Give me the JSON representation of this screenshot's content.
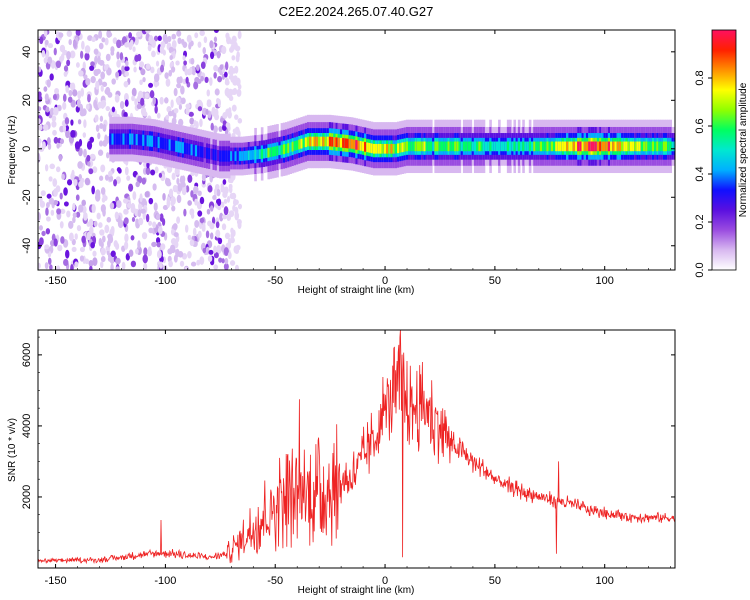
{
  "figure_title": "C2E2.2024.265.07.40.G27",
  "chart_data": [
    {
      "type": "heatmap",
      "xlabel": "Height of straight line (km)",
      "ylabel": "Frequency (Hz)",
      "xlim": [
        -158,
        132
      ],
      "ylim": [
        -50,
        49
      ],
      "xticks": [
        -150,
        -100,
        -50,
        0,
        50,
        100
      ],
      "yticks": [
        -40,
        -20,
        0,
        20,
        40
      ],
      "colorbar": {
        "label": "Normalized spectral amplitude",
        "range": [
          0,
          1
        ],
        "ticks": [
          0.0,
          0.2,
          0.4,
          0.6,
          0.8
        ],
        "tick_labels": [
          "0.0",
          "0.2",
          "0.4",
          "0.6",
          "0.8"
        ],
        "colors": [
          "#ffffff",
          "#d8b8f0",
          "#9a4ce0",
          "#5a10e0",
          "#1010ff",
          "#00b0ff",
          "#00e8d0",
          "#00ff60",
          "#90ff00",
          "#ffff00",
          "#ff9000",
          "#ff2000",
          "#ff1060"
        ]
      },
      "noise_region_x": [
        -158,
        -72
      ],
      "ridge": {
        "x": [
          -125,
          -115,
          -105,
          -95,
          -85,
          -75,
          -65,
          -55,
          -45,
          -35,
          -25,
          -15,
          -5,
          0,
          5,
          10,
          20,
          30,
          40,
          50,
          60,
          70,
          80,
          90,
          100,
          110,
          120,
          132
        ],
        "freq": [
          4,
          4,
          3,
          1,
          -1,
          -3,
          -3,
          -2,
          0,
          3,
          3,
          2,
          0,
          0,
          0,
          1,
          1,
          1,
          1,
          1,
          1,
          1,
          1,
          1,
          1,
          1,
          1,
          1
        ],
        "amp": [
          0.35,
          0.4,
          0.4,
          0.38,
          0.35,
          0.3,
          0.45,
          0.55,
          0.6,
          0.7,
          0.82,
          0.88,
          0.75,
          0.72,
          0.7,
          0.65,
          0.62,
          0.6,
          0.58,
          0.55,
          0.55,
          0.58,
          0.7,
          0.9,
          0.88,
          0.7,
          0.62,
          0.6
        ]
      }
    },
    {
      "type": "line",
      "xlabel": "Height of straight line (km)",
      "ylabel": "SNR (10 * v/v)",
      "color": "#ee2222",
      "xlim": [
        -158,
        132
      ],
      "ylim": [
        0,
        6700
      ],
      "xticks": [
        -150,
        -100,
        -50,
        0,
        50,
        100
      ],
      "yticks": [
        2000,
        4000,
        6000
      ],
      "envelope_x": [
        -158,
        -130,
        -120,
        -110,
        -100,
        -90,
        -80,
        -72,
        -65,
        -55,
        -45,
        -35,
        -25,
        -15,
        -5,
        0,
        5,
        8,
        10,
        15,
        20,
        25,
        30,
        40,
        50,
        60,
        70,
        78,
        85,
        95,
        110,
        132
      ],
      "envelope_y": [
        200,
        230,
        300,
        380,
        420,
        350,
        300,
        400,
        800,
        1500,
        2000,
        2100,
        2200,
        2600,
        3600,
        4500,
        5000,
        5200,
        4600,
        4500,
        4400,
        4000,
        3500,
        3000,
        2500,
        2200,
        2000,
        1900,
        1800,
        1600,
        1450,
        1400
      ],
      "spikes": [
        {
          "x": -102,
          "y": 1350
        },
        {
          "x": -39,
          "y": 4750
        },
        {
          "x": -48,
          "y": 3100
        },
        {
          "x": 7,
          "y": 6700
        },
        {
          "x": 8,
          "y": 300
        },
        {
          "x": 17,
          "y": 5800
        },
        {
          "x": 78,
          "y": 400
        },
        {
          "x": 79,
          "y": 3000
        }
      ]
    }
  ]
}
